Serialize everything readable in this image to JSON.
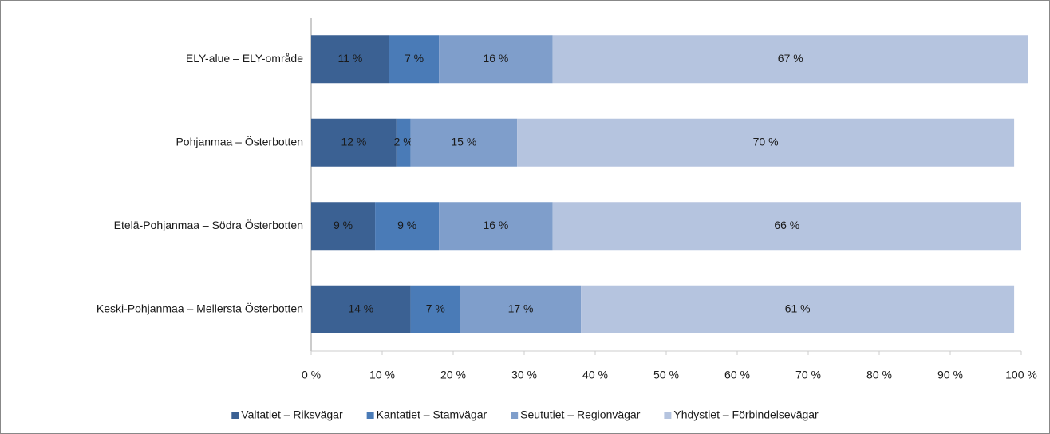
{
  "chart_data": {
    "type": "stacked-bar-horizontal",
    "categories": [
      "ELY-alue – ELY-område",
      "Pohjanmaa – Österbotten",
      "Etelä-Pohjanmaa – Södra Österbotten",
      "Keski-Pohjanmaa – Mellersta Österbotten"
    ],
    "series": [
      {
        "name": "Valtatiet – Riksvägar",
        "color": "#3b6193",
        "values": [
          11,
          12,
          9,
          14
        ],
        "value_labels": [
          "11 %",
          "12 %",
          "9 %",
          "14 %"
        ]
      },
      {
        "name": "Kantatiet – Stamvägar",
        "color": "#4a7bb7",
        "values": [
          7,
          2,
          9,
          7
        ],
        "value_labels": [
          "7 %",
          "2 %",
          "9 %",
          "7 %"
        ]
      },
      {
        "name": "Seututiet – Regionvägar",
        "color": "#7f9ecb",
        "values": [
          16,
          15,
          16,
          17
        ],
        "value_labels": [
          "16 %",
          "15 %",
          "16 %",
          "17 %"
        ]
      },
      {
        "name": "Yhdystiet – Förbindelsevägar",
        "color": "#b5c4df",
        "values": [
          67,
          70,
          66,
          61
        ],
        "value_labels": [
          "67 %",
          "70 %",
          "66 %",
          "61 %"
        ]
      }
    ],
    "xlim": [
      0,
      100
    ],
    "xticks": [
      {
        "value": 0,
        "label": "0 %"
      },
      {
        "value": 10,
        "label": "10 %"
      },
      {
        "value": 20,
        "label": "20 %"
      },
      {
        "value": 30,
        "label": "30 %"
      },
      {
        "value": 40,
        "label": "40 %"
      },
      {
        "value": 50,
        "label": "50 %"
      },
      {
        "value": 60,
        "label": "60 %"
      },
      {
        "value": 70,
        "label": "70 %"
      },
      {
        "value": 80,
        "label": "80 %"
      },
      {
        "value": 90,
        "label": "90 %"
      },
      {
        "value": 100,
        "label": "100 %"
      }
    ],
    "legend": "bottom",
    "grid": false
  }
}
